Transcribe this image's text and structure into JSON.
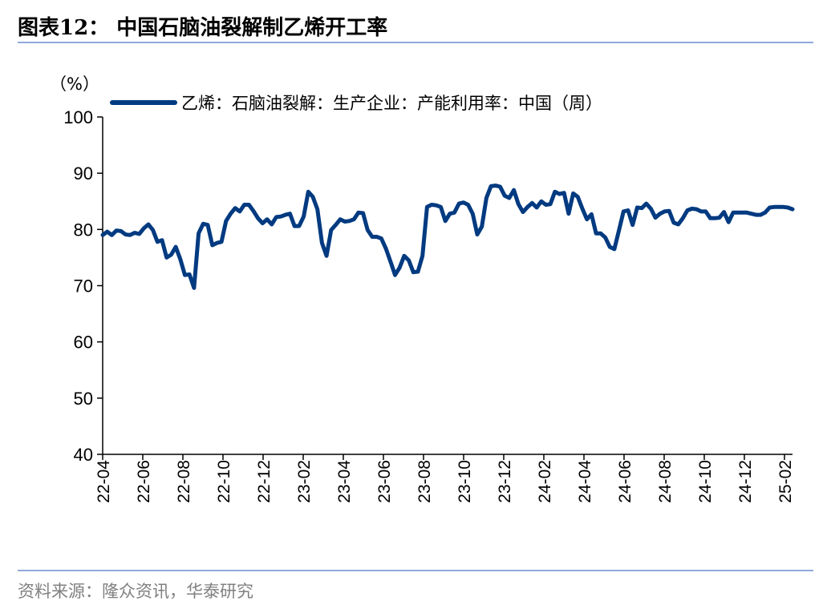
{
  "header": {
    "title": "图表12：  中国石脑油裂解制乙烯开工率"
  },
  "footer": {
    "source": "资料来源：隆众资讯，华泰研究"
  },
  "chart_data": {
    "type": "line",
    "ylabel": "（%）",
    "ylim": [
      40,
      100
    ],
    "yticks": [
      40,
      50,
      60,
      70,
      80,
      90,
      100
    ],
    "xticks": [
      "22-04",
      "22-06",
      "22-08",
      "22-10",
      "22-12",
      "23-02",
      "23-04",
      "23-06",
      "23-08",
      "23-10",
      "23-12",
      "24-02",
      "24-04",
      "24-06",
      "24-08",
      "24-10",
      "24-12",
      "25-02"
    ],
    "legend_position": "top",
    "color": "#003A80",
    "series": [
      {
        "name": "乙烯：石脑油裂解：生产企业：产能利用率：中国（周）",
        "values": [
          79,
          79.6,
          79,
          79.8,
          79.7,
          79.1,
          79,
          79.4,
          79.2,
          80.2,
          80.9,
          79.9,
          77.8,
          78.1,
          75,
          75.5,
          76.9,
          74.7,
          71.9,
          72,
          69.6,
          79.3,
          81,
          80.8,
          77.2,
          77.6,
          77.8,
          81.5,
          82.8,
          83.8,
          83.2,
          84.4,
          84.4,
          83.3,
          82,
          81.1,
          81.8,
          80.9,
          82.2,
          82.3,
          82.6,
          82.8,
          80.6,
          80.6,
          82.3,
          86.7,
          85.8,
          83.6,
          77.6,
          75.3,
          79.9,
          80.8,
          81.8,
          81.4,
          81.5,
          81.8,
          83,
          82.9,
          79.9,
          78.7,
          78.7,
          78.4,
          76.6,
          74.3,
          71.9,
          73.2,
          75.3,
          74.5,
          72.4,
          72.5,
          75.3,
          84,
          84.4,
          84.3,
          84,
          81.5,
          82.8,
          83,
          84.6,
          84.8,
          84.4,
          82.8,
          79.1,
          80.5,
          85.6,
          87.7,
          87.8,
          87.6,
          86,
          85.6,
          87,
          84.5,
          83.1,
          84,
          84.7,
          83.9,
          85,
          84.4,
          84.5,
          86.7,
          86.3,
          86.5,
          82.8,
          86.4,
          85.8,
          83.7,
          81.8,
          82.7,
          79.3,
          79.3,
          78.6,
          76.9,
          76.5,
          79.8,
          83.2,
          83.4,
          80.8,
          83.9,
          83.8,
          84.6,
          83.7,
          82.1,
          82.8,
          83.2,
          83.3,
          81.2,
          80.9,
          82,
          83.4,
          83.7,
          83.6,
          83.2,
          83.2,
          82,
          82,
          82.1,
          83.1,
          81.3,
          83,
          83,
          83,
          83,
          82.8,
          82.6,
          82.6,
          83,
          83.9,
          84,
          84,
          84,
          83.9,
          83.6
        ]
      }
    ]
  }
}
